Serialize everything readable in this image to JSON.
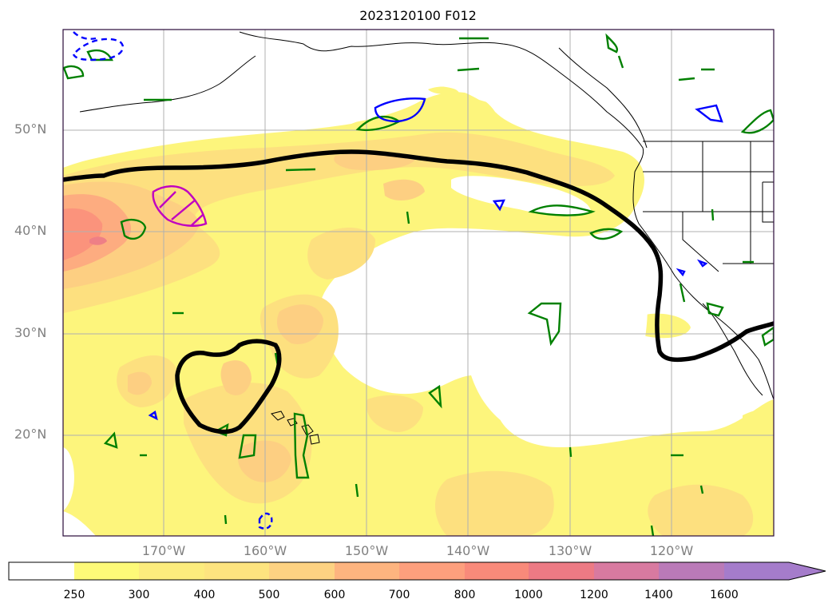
{
  "title": "2023120100 F012",
  "lat_labels": [
    "50°N",
    "40°N",
    "30°N",
    "20°N"
  ],
  "lon_labels": [
    "170°W",
    "160°W",
    "150°W",
    "140°W",
    "130°W",
    "120°W"
  ],
  "colorbar": {
    "ticks": [
      "250",
      "300",
      "400",
      "500",
      "600",
      "700",
      "800",
      "1000",
      "1200",
      "1400",
      "1600"
    ],
    "colors": [
      "#ffffff",
      "#fdfa78",
      "#fcec7d",
      "#fde47f",
      "#fdd282",
      "#fdb47f",
      "#fd9f7d",
      "#f98a7a",
      "#ed7a84",
      "#d87aa0",
      "#ba7ab8",
      "#a57ccb"
    ],
    "extend": "max"
  },
  "colors": {
    "contour_black": "#000000",
    "contour_green": "#008000",
    "contour_blue": "#0000ff",
    "contour_magenta": "#c000c0",
    "gridline": "#b0b0b0",
    "frame": "#2a0a3a"
  }
}
